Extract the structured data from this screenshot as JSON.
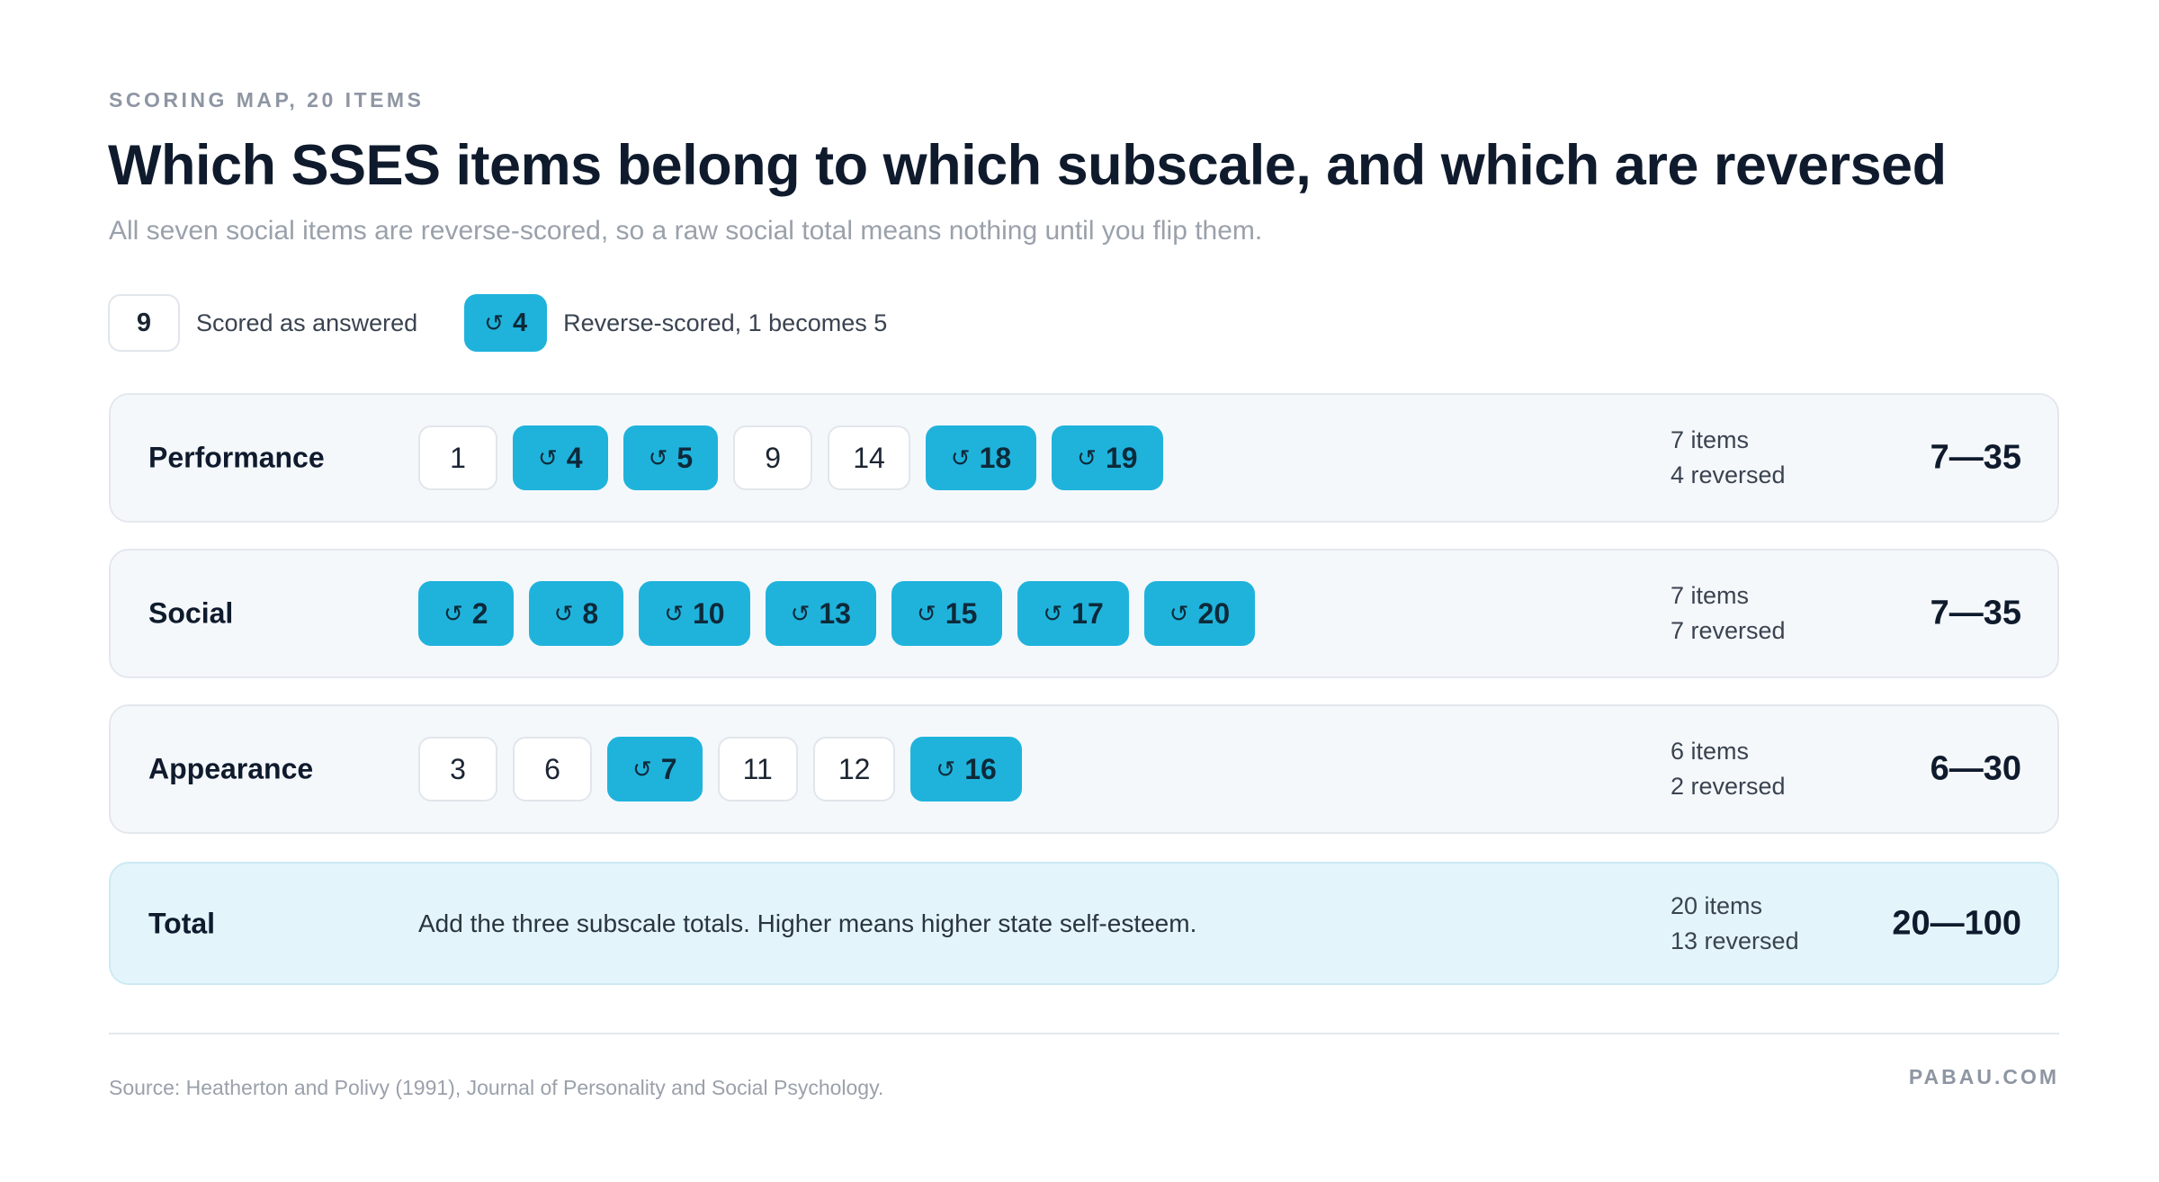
{
  "header": {
    "eyebrow": "SCORING MAP, 20 ITEMS",
    "title": "Which SSES items belong to which subscale, and which are reversed",
    "subtitle": "All seven social items are reverse-scored, so a raw social total means nothing until you flip them."
  },
  "legend": {
    "plain_example": "9",
    "plain_label": "Scored as answered",
    "reversed_example": "4",
    "reversed_label": "Reverse-scored, 1 becomes 5",
    "reversed_icon": "reverse-arrow-icon"
  },
  "colors": {
    "reversed_chip": "#1fb3dc",
    "plain_chip_border": "#e1e6ec",
    "row_background": "#f5f8fb",
    "total_background": "#e3f5fb"
  },
  "subscales": [
    {
      "name": "Performance",
      "items": [
        {
          "n": "1",
          "reversed": false
        },
        {
          "n": "4",
          "reversed": true
        },
        {
          "n": "5",
          "reversed": true
        },
        {
          "n": "9",
          "reversed": false
        },
        {
          "n": "14",
          "reversed": false
        },
        {
          "n": "18",
          "reversed": true
        },
        {
          "n": "19",
          "reversed": true
        }
      ],
      "count_text": "7 items",
      "reversed_text": "4 reversed",
      "range": "7—35"
    },
    {
      "name": "Social",
      "items": [
        {
          "n": "2",
          "reversed": true
        },
        {
          "n": "8",
          "reversed": true
        },
        {
          "n": "10",
          "reversed": true
        },
        {
          "n": "13",
          "reversed": true
        },
        {
          "n": "15",
          "reversed": true
        },
        {
          "n": "17",
          "reversed": true
        },
        {
          "n": "20",
          "reversed": true
        }
      ],
      "count_text": "7 items",
      "reversed_text": "7 reversed",
      "range": "7—35"
    },
    {
      "name": "Appearance",
      "items": [
        {
          "n": "3",
          "reversed": false
        },
        {
          "n": "6",
          "reversed": false
        },
        {
          "n": "7",
          "reversed": true
        },
        {
          "n": "11",
          "reversed": false
        },
        {
          "n": "12",
          "reversed": false
        },
        {
          "n": "16",
          "reversed": true
        }
      ],
      "count_text": "6 items",
      "reversed_text": "2 reversed",
      "range": "6—30"
    }
  ],
  "total": {
    "name": "Total",
    "description": "Add the three subscale totals. Higher means higher state self-esteem.",
    "count_text": "20 items",
    "reversed_text": "13 reversed",
    "range": "20—100"
  },
  "footer": {
    "source": "Source: Heatherton and Polivy (1991), Journal of Personality and Social Psychology.",
    "brand": "PABAU.COM"
  }
}
